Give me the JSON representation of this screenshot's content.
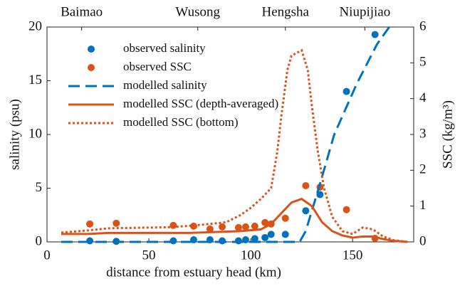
{
  "chart_data": {
    "type": "line",
    "xlabel": "distance from estuary head (km)",
    "ylabel": "salinity (psu)",
    "y2label": "SSC (kg/m³)",
    "xlim": [
      0,
      180
    ],
    "xticks": [
      0,
      50,
      100,
      150
    ],
    "ylim": [
      0,
      20
    ],
    "yticks": [
      0,
      5,
      10,
      15,
      20
    ],
    "y2lim": [
      0,
      6
    ],
    "y2ticks": [
      0,
      1,
      2,
      3,
      4,
      5,
      6
    ],
    "top_ticks": [
      {
        "value": 17,
        "label": "Baimao"
      },
      {
        "value": 74,
        "label": "Wusong"
      },
      {
        "value": 117,
        "label": "Hengsha"
      },
      {
        "value": 156,
        "label": "Niupijiao"
      }
    ],
    "legend": "upper left",
    "series": [
      {
        "name": "observed salinity",
        "type": "scatter",
        "color": "#0072bd",
        "axis": "y",
        "x": [
          21,
          34,
          62,
          72,
          80,
          86,
          94,
          97.5,
          102,
          107,
          110,
          117,
          127,
          134,
          147,
          161
        ],
        "values": [
          0.1,
          0.05,
          0.1,
          0.2,
          0.2,
          0.1,
          0.1,
          0.2,
          0.3,
          0.4,
          0.7,
          0.7,
          2.9,
          4.4,
          14,
          19.3
        ]
      },
      {
        "name": "observed SSC",
        "type": "scatter",
        "color": "#d95319",
        "axis": "y2",
        "x": [
          21,
          34,
          62,
          72,
          80,
          86,
          94,
          97.5,
          102,
          107,
          110,
          117,
          127,
          134,
          147,
          161
        ],
        "values": [
          0.5,
          0.52,
          0.46,
          0.44,
          0.36,
          0.42,
          0.4,
          0.42,
          0.44,
          0.54,
          0.5,
          0.66,
          1.57,
          1.53,
          0.9,
          0.1
        ]
      },
      {
        "name": "modelled salinity",
        "type": "line",
        "style": "dashed",
        "color": "#0072bd",
        "axis": "y",
        "x": [
          7,
          124,
          127,
          134,
          141,
          152,
          162,
          168
        ],
        "values": [
          0,
          0,
          1,
          5.4,
          10,
          14.7,
          18.4,
          20
        ]
      },
      {
        "name": "modelled SSC (depth-averaged)",
        "type": "line",
        "style": "solid",
        "color": "#d95319",
        "axis": "y2",
        "x": [
          7,
          20,
          30,
          50,
          70,
          85,
          95,
          105,
          110,
          115,
          120,
          125,
          130,
          135,
          140,
          145,
          150,
          155,
          160,
          165,
          170,
          177
        ],
        "values": [
          0.22,
          0.22,
          0.25,
          0.25,
          0.25,
          0.28,
          0.3,
          0.35,
          0.5,
          0.8,
          1.1,
          1.2,
          1.0,
          0.55,
          0.3,
          0.18,
          0.12,
          0.15,
          0.15,
          0.08,
          0.03,
          0
        ]
      },
      {
        "name": "modelled SSC (bottom)",
        "type": "line",
        "style": "dotted",
        "color": "#d95319",
        "axis": "y2",
        "x": [
          7,
          20,
          30,
          50,
          60,
          70,
          80,
          88,
          95,
          100,
          105,
          110,
          113,
          115,
          118,
          120,
          125,
          128,
          130,
          133,
          136,
          140,
          145,
          150,
          155,
          160,
          165,
          170,
          177
        ],
        "values": [
          0.26,
          0.32,
          0.38,
          0.4,
          0.41,
          0.45,
          0.5,
          0.55,
          0.75,
          0.95,
          1.2,
          1.5,
          2.5,
          3.5,
          4.8,
          5.2,
          5.35,
          4.8,
          3.8,
          2.5,
          1.5,
          0.7,
          0.3,
          0.22,
          0.4,
          0.35,
          0.15,
          0.05,
          0
        ]
      }
    ]
  }
}
